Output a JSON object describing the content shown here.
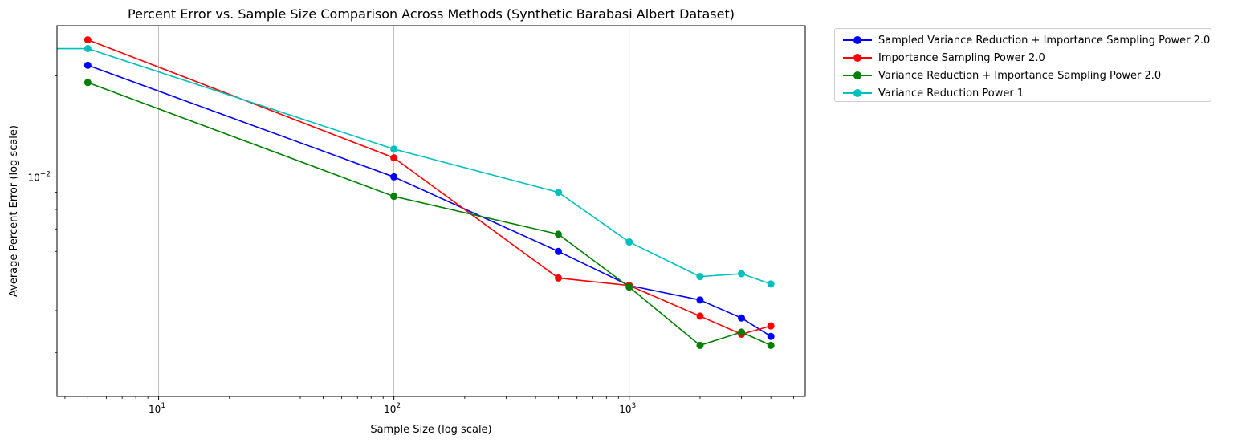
{
  "chart_data": {
    "type": "line",
    "title": "Percent Error vs. Sample Size Comparison Across Methods (Synthetic Barabasi Albert Dataset)",
    "xlabel": "Sample Size (log scale)",
    "ylabel": "Average Percent Error (log scale)",
    "xscale": "log",
    "yscale": "log",
    "xlim": [
      3.7,
      5600
    ],
    "ylim": [
      0.00222,
      0.0282
    ],
    "xticks": [
      {
        "value": 10,
        "base": "10",
        "exp": "1"
      },
      {
        "value": 100,
        "base": "10",
        "exp": "2"
      },
      {
        "value": 1000,
        "base": "10",
        "exp": "3"
      }
    ],
    "yticks": [
      {
        "value": 0.01,
        "base": "10",
        "exp": "−2"
      }
    ],
    "grid": true,
    "legend_position": "outside-upper-right",
    "series": [
      {
        "name": "Sampled Variance Reduction + Importance Sampling Power 2.0",
        "color": "#0000ff",
        "x": [
          5,
          100,
          500,
          1000,
          2000,
          3000,
          4000
        ],
        "y": [
          0.0215,
          0.01,
          0.006,
          0.00475,
          0.0043,
          0.0038,
          0.00335
        ]
      },
      {
        "name": "Importance Sampling Power 2.0",
        "color": "#ff0000",
        "x": [
          5,
          100,
          500,
          1000,
          2000,
          3000,
          4000
        ],
        "y": [
          0.0256,
          0.0114,
          0.005,
          0.00475,
          0.00385,
          0.0034,
          0.0036
        ]
      },
      {
        "name": "Variance Reduction + Importance Sampling Power 2.0",
        "color": "#008000",
        "x": [
          5,
          100,
          500,
          1000,
          2000,
          3000,
          4000
        ],
        "y": [
          0.0191,
          0.00875,
          0.00675,
          0.0047,
          0.00315,
          0.00345,
          0.00315
        ]
      },
      {
        "name": "Variance Reduction Power 1",
        "color": "#00bfbf",
        "x": [
          5,
          100,
          500,
          1000,
          2000,
          3000,
          4000
        ],
        "y": [
          0.0241,
          0.0121,
          0.009,
          0.0064,
          0.00505,
          0.00515,
          0.0048
        ]
      }
    ]
  }
}
